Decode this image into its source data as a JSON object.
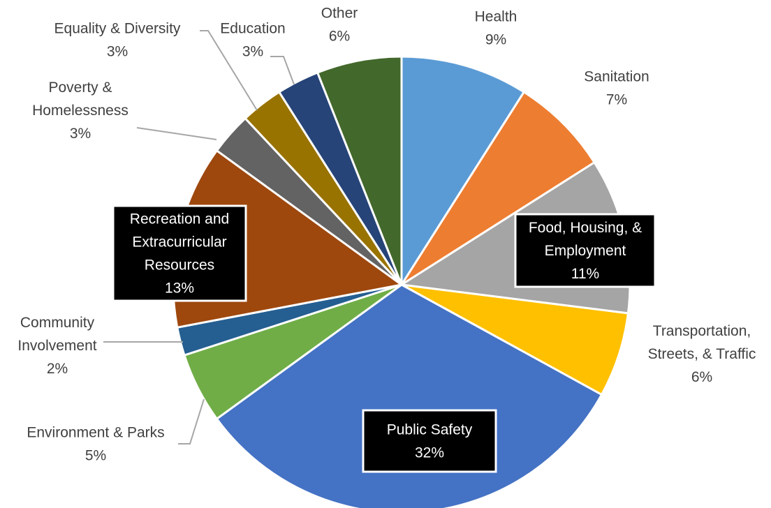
{
  "chart_data": {
    "type": "pie",
    "title": "",
    "slices": [
      {
        "name": "Health",
        "percent": 9,
        "label_lines": [
          "Health",
          "9%"
        ],
        "color": "#5b9bd5"
      },
      {
        "name": "Sanitation",
        "percent": 7,
        "label_lines": [
          "Sanitation",
          "7%"
        ],
        "color": "#ed7d31"
      },
      {
        "name": "Food, Housing, & Employment",
        "percent": 11,
        "label_lines": [
          "Food, Housing, &",
          "Employment",
          "11%"
        ],
        "color": "#a5a5a5"
      },
      {
        "name": "Transportation, Streets, & Traffic",
        "percent": 6,
        "label_lines": [
          "Transportation,",
          "Streets, & Traffic",
          "6%"
        ],
        "color": "#ffc000"
      },
      {
        "name": "Public Safety",
        "percent": 32,
        "label_lines": [
          "Public Safety",
          "32%"
        ],
        "color": "#4472c4"
      },
      {
        "name": "Environment & Parks",
        "percent": 5,
        "label_lines": [
          "Environment & Parks",
          "5%"
        ],
        "color": "#70ad47"
      },
      {
        "name": "Community Involvement",
        "percent": 2,
        "label_lines": [
          "Community",
          "Involvement",
          "2%"
        ],
        "color": "#255e91"
      },
      {
        "name": "Recreation and Extracurricular Resources",
        "percent": 13,
        "label_lines": [
          "Recreation and",
          "Extracurricular",
          "Resources",
          "13%"
        ],
        "color": "#9e480e"
      },
      {
        "name": "Poverty & Homelessness",
        "percent": 3,
        "label_lines": [
          "Poverty &",
          "Homelessness",
          "3%"
        ],
        "color": "#636363"
      },
      {
        "name": "Equality & Diversity",
        "percent": 3,
        "label_lines": [
          "Equality & Diversity",
          "3%"
        ],
        "color": "#997300"
      },
      {
        "name": "Education",
        "percent": 3,
        "label_lines": [
          "Education",
          "3%"
        ],
        "color": "#264478"
      },
      {
        "name": "Other",
        "percent": 6,
        "label_lines": [
          "Other",
          "6%"
        ],
        "color": "#43682b"
      }
    ]
  }
}
